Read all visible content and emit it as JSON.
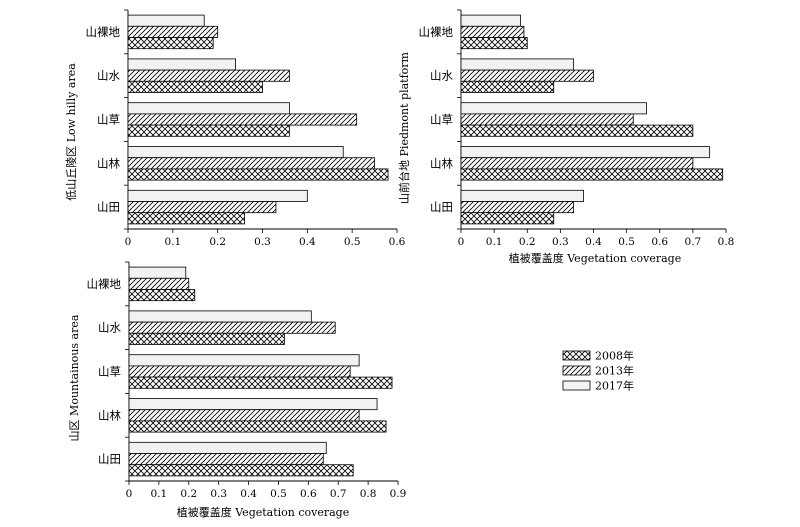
{
  "legend": [
    {
      "label": "2008年",
      "pattern": "cross-hatch"
    },
    {
      "label": "2013年",
      "pattern": "diagonal-hatch"
    },
    {
      "label": "2017年",
      "pattern": "light-fill"
    }
  ],
  "chart_data": [
    {
      "type": "bar",
      "orientation": "horizontal",
      "ylabel": "低山丘陵区 Low hilly area",
      "xlabel": "",
      "categories": [
        "山裸地",
        "山水",
        "山草",
        "山林",
        "山田"
      ],
      "series": [
        {
          "name": "2008年",
          "values": [
            0.19,
            0.3,
            0.36,
            0.58,
            0.26
          ]
        },
        {
          "name": "2013年",
          "values": [
            0.2,
            0.36,
            0.51,
            0.55,
            0.33
          ]
        },
        {
          "name": "2017年",
          "values": [
            0.17,
            0.24,
            0.36,
            0.48,
            0.4
          ]
        }
      ],
      "xlim": [
        0,
        0.6
      ],
      "xticks": [
        "0",
        "0.1",
        "0.2",
        "0.3",
        "0.4",
        "0.5",
        "0.6"
      ]
    },
    {
      "type": "bar",
      "orientation": "horizontal",
      "ylabel": "山前台地 Piedmont platform",
      "xlabel": "植被覆盖度 Vegetation coverage",
      "categories": [
        "山裸地",
        "山水",
        "山草",
        "山林",
        "山田"
      ],
      "series": [
        {
          "name": "2008年",
          "values": [
            0.2,
            0.28,
            0.7,
            0.79,
            0.28
          ]
        },
        {
          "name": "2013年",
          "values": [
            0.19,
            0.4,
            0.52,
            0.7,
            0.34
          ]
        },
        {
          "name": "2017年",
          "values": [
            0.18,
            0.34,
            0.56,
            0.75,
            0.37
          ]
        }
      ],
      "xlim": [
        0,
        0.8
      ],
      "xticks": [
        "0",
        "0.1",
        "0.2",
        "0.3",
        "0.4",
        "0.5",
        "0.6",
        "0.7",
        "0.8"
      ]
    },
    {
      "type": "bar",
      "orientation": "horizontal",
      "ylabel": "山区 Mountainous area",
      "xlabel": "植被覆盖度 Vegetation coverage",
      "categories": [
        "山裸地",
        "山水",
        "山草",
        "山林",
        "山田"
      ],
      "series": [
        {
          "name": "2008年",
          "values": [
            0.22,
            0.52,
            0.88,
            0.86,
            0.75
          ]
        },
        {
          "name": "2013年",
          "values": [
            0.2,
            0.69,
            0.74,
            0.77,
            0.65
          ]
        },
        {
          "name": "2017年",
          "values": [
            0.19,
            0.61,
            0.77,
            0.83,
            0.66
          ]
        }
      ],
      "xlim": [
        0,
        0.9
      ],
      "xticks": [
        "0",
        "0.1",
        "0.2",
        "0.3",
        "0.4",
        "0.5",
        "0.6",
        "0.7",
        "0.8",
        "0.9"
      ]
    }
  ]
}
